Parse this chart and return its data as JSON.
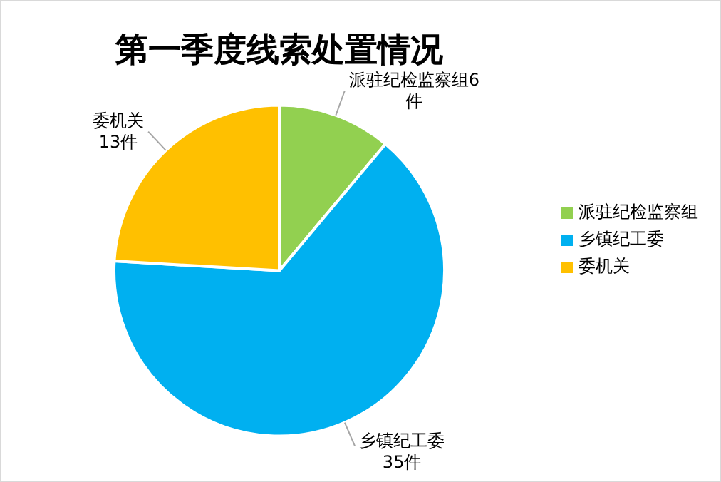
{
  "chart_data": {
    "type": "pie",
    "title": "第一季度线索处置情况",
    "categories": [
      "派驻纪检监察组",
      "乡镇纪工委",
      "委机关"
    ],
    "values": [
      6,
      35,
      13
    ],
    "colors": [
      "#92d050",
      "#00b0f0",
      "#ffc000"
    ],
    "value_labels": [
      "派驻纪检监察组6件",
      "乡镇纪工委35件",
      "委机关13件"
    ],
    "legend": "right"
  }
}
